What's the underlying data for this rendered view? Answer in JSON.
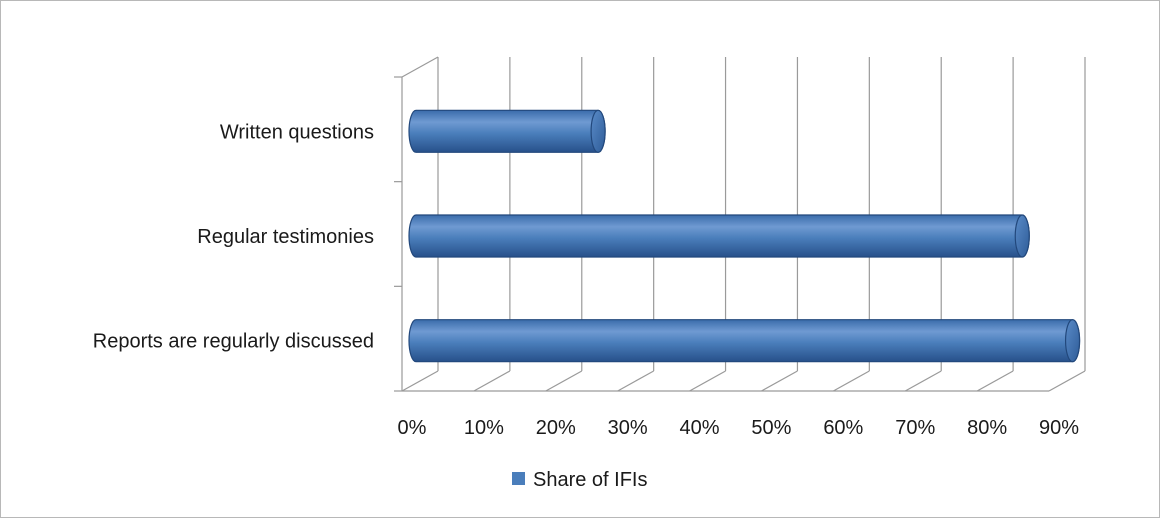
{
  "chart_data": {
    "type": "bar",
    "orientation": "horizontal",
    "style": "3d-cylinder",
    "categories": [
      "Written questions",
      "Regular testimonies",
      "Reports are regularly discussed"
    ],
    "series": [
      {
        "name": "Share of IFIs",
        "values": [
          0.27,
          0.86,
          0.93
        ],
        "color": "#4a7ebb"
      }
    ],
    "xlim": [
      0,
      0.9
    ],
    "xticks": [
      0,
      0.1,
      0.2,
      0.3,
      0.4,
      0.5,
      0.6,
      0.7,
      0.8,
      0.9
    ],
    "xtick_labels": [
      "0%",
      "10%",
      "20%",
      "30%",
      "40%",
      "50%",
      "60%",
      "70%",
      "80%",
      "90%"
    ],
    "grid": true,
    "legend_position": "bottom"
  }
}
